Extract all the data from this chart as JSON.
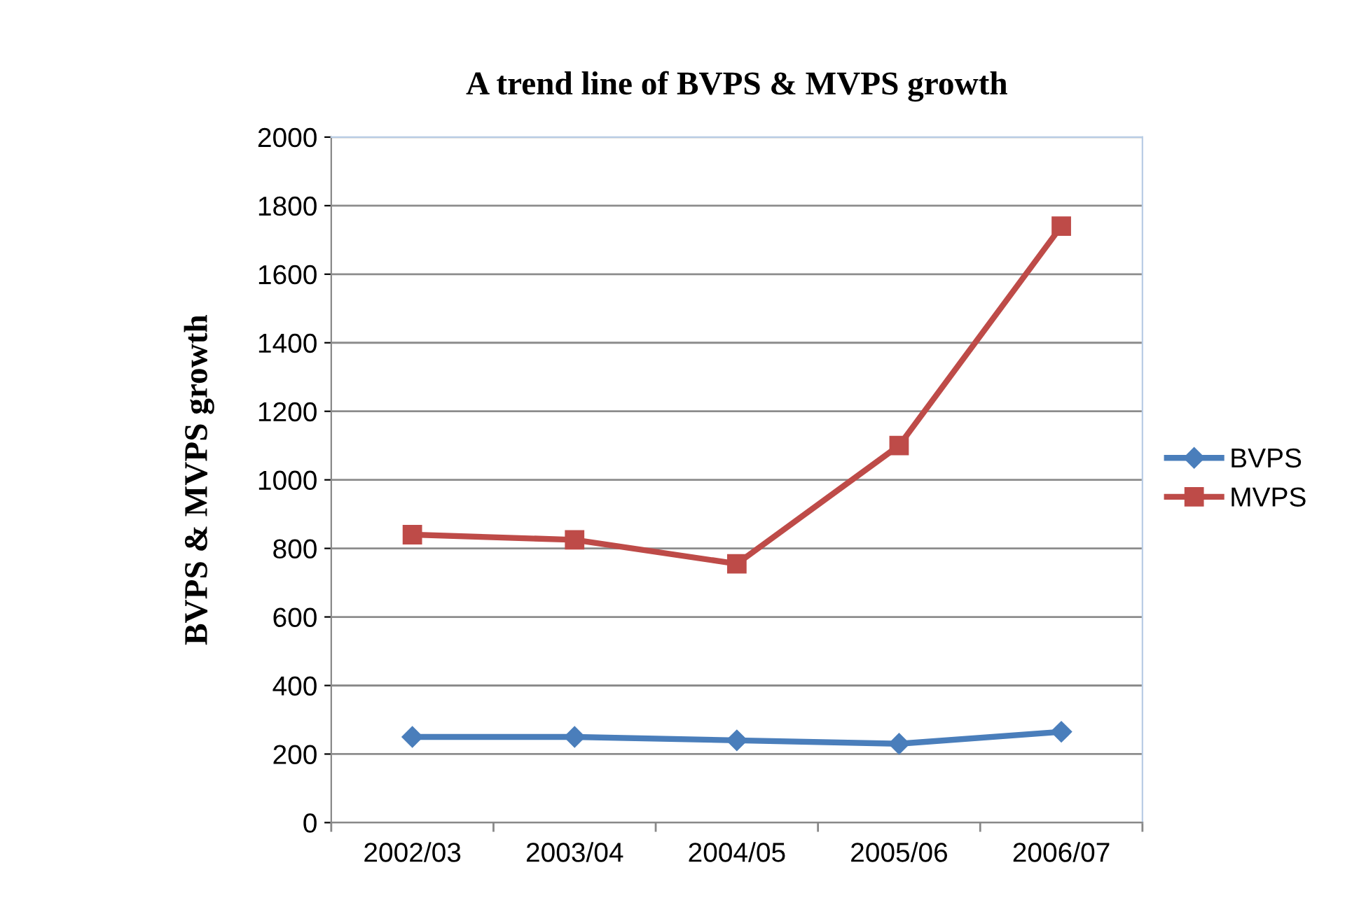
{
  "chart_data": {
    "type": "line",
    "title": "A trend line of BVPS & MVPS growth",
    "ylabel": "BVPS & MVPS growth",
    "categories": [
      "2002/03",
      "2003/04",
      "2004/05",
      "2005/06",
      "2006/07"
    ],
    "series": [
      {
        "name": "BVPS",
        "color": "#4a7ebb",
        "marker": "diamond",
        "values": [
          250,
          250,
          240,
          230,
          265
        ]
      },
      {
        "name": "MVPS",
        "color": "#be4b48",
        "marker": "square",
        "values": [
          840,
          825,
          755,
          1100,
          1740
        ]
      }
    ],
    "ylim": [
      0,
      2000
    ],
    "yticks": [
      0,
      200,
      400,
      600,
      800,
      1000,
      1200,
      1400,
      1600,
      1800,
      2000
    ],
    "grid": "y",
    "legend": "right"
  }
}
